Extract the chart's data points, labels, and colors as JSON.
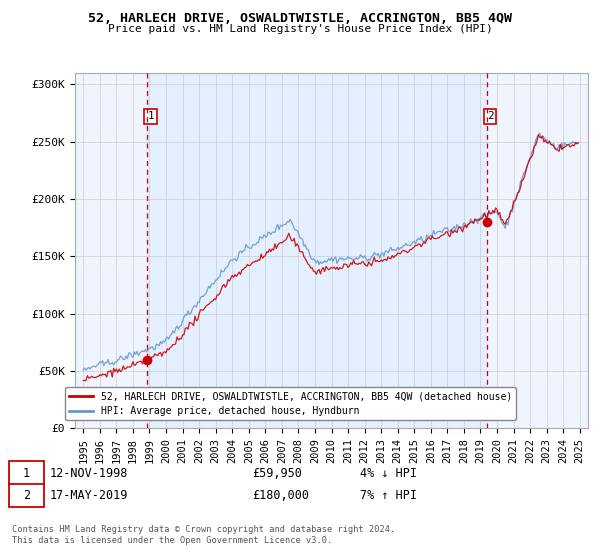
{
  "title": "52, HARLECH DRIVE, OSWALDTWISTLE, ACCRINGTON, BB5 4QW",
  "subtitle": "Price paid vs. HM Land Registry's House Price Index (HPI)",
  "ylabel_values": [
    "£0",
    "£50K",
    "£100K",
    "£150K",
    "£200K",
    "£250K",
    "£300K"
  ],
  "ylim": [
    0,
    310000
  ],
  "yticks": [
    0,
    50000,
    100000,
    150000,
    200000,
    250000,
    300000
  ],
  "sale1_date": "12-NOV-1998",
  "sale1_price": 59950,
  "sale1_note": "4% ↓ HPI",
  "sale1_label": "1",
  "sale1_year": 1998.87,
  "sale2_date": "17-MAY-2019",
  "sale2_price": 180000,
  "sale2_note": "7% ↑ HPI",
  "sale2_label": "2",
  "sale2_year": 2019.38,
  "line1_label": "52, HARLECH DRIVE, OSWALDTWISTLE, ACCRINGTON, BB5 4QW (detached house)",
  "line2_label": "HPI: Average price, detached house, Hyndburn",
  "line1_color": "#cc0000",
  "line2_color": "#6699cc",
  "marker_color": "#cc0000",
  "vline_color": "#cc0000",
  "fill_color": "#ddeeff",
  "footnote": "Contains HM Land Registry data © Crown copyright and database right 2024.\nThis data is licensed under the Open Government Licence v3.0.",
  "bg_color": "#ffffff",
  "plot_bg_color": "#f0f4ff",
  "grid_color": "#cccccc",
  "xlim_start": 1994.5,
  "xlim_end": 2025.5
}
